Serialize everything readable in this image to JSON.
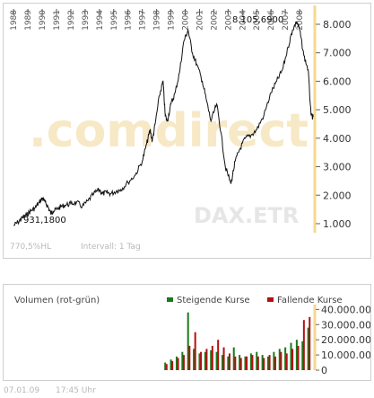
{
  "chart_data": [
    {
      "type": "line",
      "ylim": [
        -0.2,
        8.6
      ],
      "yticks": [
        1.0,
        2.0,
        3.0,
        4.0,
        5.0,
        6.0,
        7.0,
        8.0
      ],
      "ytick_labels": [
        "1.000",
        "2.000",
        "3.000",
        "4.000",
        "5.000",
        "6.000",
        "7.000",
        "8.000"
      ],
      "xlim": [
        1987.8,
        2009.0
      ],
      "xticks": [
        1988,
        1989,
        1990,
        1991,
        1992,
        1993,
        1994,
        1995,
        1996,
        1997,
        1998,
        1999,
        2000,
        2001,
        2002,
        2003,
        2004,
        2005,
        2006,
        2007,
        2008
      ],
      "xtick_labels": [
        "1988",
        "1989",
        "1990",
        "1991",
        "1992",
        "1993",
        "1994",
        "1995",
        "1996",
        "1997",
        "1998",
        "1999",
        "2000",
        "2001",
        "2002",
        "2003",
        "2004",
        "2005",
        "2006",
        "2007",
        "2008"
      ],
      "annotations": {
        "low": "931,1800",
        "high": "8.105,6900"
      },
      "watermark_brand": ".comdirect",
      "watermark_index": "DAX.ETR",
      "series": [
        {
          "x": [
            1988.0,
            1988.3,
            1988.6,
            1988.9,
            1989.2,
            1989.5,
            1989.8,
            1990.0,
            1990.2,
            1990.4,
            1990.6,
            1990.75,
            1991.0,
            1991.3,
            1991.6,
            1992.0,
            1992.4,
            1992.8,
            1993.2,
            1993.6,
            1994.0,
            1994.2,
            1994.5,
            1994.8,
            1995.2,
            1995.5,
            1996.0,
            1996.5,
            1997.0,
            1997.3,
            1997.55,
            1997.7,
            1997.9,
            1998.2,
            1998.45,
            1998.6,
            1998.75,
            1999.0,
            1999.3,
            1999.6,
            1999.9,
            2000.2,
            2000.5,
            2000.8,
            2001.2,
            2001.5,
            2001.8,
            2002.2,
            2002.5,
            2002.8,
            2003.2,
            2003.5,
            2003.8,
            2004.2,
            2004.6,
            2005.0,
            2005.5,
            2006.0,
            2006.4,
            2006.8,
            2007.2,
            2007.5,
            2007.8,
            2008.0,
            2008.3,
            2008.6,
            2008.8,
            2009.0
          ],
          "values": [
            0.93,
            1.05,
            1.2,
            1.3,
            1.45,
            1.55,
            1.75,
            1.9,
            1.75,
            1.6,
            1.35,
            1.45,
            1.5,
            1.6,
            1.65,
            1.7,
            1.75,
            1.6,
            1.8,
            2.05,
            2.2,
            2.05,
            2.1,
            2.05,
            2.15,
            2.2,
            2.45,
            2.7,
            3.2,
            3.8,
            4.3,
            3.9,
            4.5,
            5.5,
            6.0,
            4.8,
            4.6,
            5.2,
            5.6,
            6.3,
            7.4,
            7.8,
            7.0,
            6.6,
            6.0,
            5.3,
            4.6,
            5.2,
            4.2,
            3.0,
            2.4,
            3.2,
            3.6,
            4.0,
            4.1,
            4.3,
            4.8,
            5.6,
            6.0,
            6.4,
            7.2,
            7.8,
            8.1,
            7.8,
            6.9,
            6.4,
            4.8,
            4.7
          ]
        }
      ],
      "xlabel": "",
      "ylabel": ""
    },
    {
      "type": "bar",
      "ylim": [
        0,
        42000000
      ],
      "yticks": [
        0,
        10000000,
        20000000,
        30000000,
        40000000
      ],
      "ytick_labels": [
        "0",
        "10.000.000",
        "20.000.000",
        "30.000.000",
        "40.000.000"
      ],
      "xlim": [
        1987.8,
        2009.0
      ],
      "series": [
        {
          "name": "Steigende Kurse",
          "color": "#1a7a1a",
          "x": [
            1998.6,
            1999.0,
            1999.4,
            1999.8,
            2000.2,
            2000.6,
            2001.0,
            2001.4,
            2001.8,
            2002.2,
            2002.6,
            2003.0,
            2003.4,
            2003.8,
            2004.2,
            2004.6,
            2005.0,
            2005.4,
            2005.8,
            2006.2,
            2006.6,
            2007.0,
            2007.4,
            2007.8,
            2008.2,
            2008.6
          ],
          "values": [
            5000000,
            7000000,
            9000000,
            12000000,
            38000000,
            14000000,
            11000000,
            12000000,
            13000000,
            12000000,
            10000000,
            9000000,
            15000000,
            10000000,
            9000000,
            11000000,
            12000000,
            10000000,
            9000000,
            12000000,
            14000000,
            15000000,
            18000000,
            20000000,
            19000000,
            28000000
          ]
        },
        {
          "name": "Fallende Kurse",
          "color": "#b31010",
          "x": [
            1998.7,
            1999.1,
            1999.5,
            1999.9,
            2000.3,
            2000.7,
            2001.1,
            2001.5,
            2001.9,
            2002.3,
            2002.7,
            2003.1,
            2003.5,
            2003.9,
            2004.3,
            2004.7,
            2005.1,
            2005.5,
            2005.9,
            2006.3,
            2006.7,
            2007.1,
            2007.5,
            2007.9,
            2008.3,
            2008.7
          ],
          "values": [
            4000000,
            6000000,
            8000000,
            10000000,
            16000000,
            25000000,
            12000000,
            14000000,
            16000000,
            20000000,
            15000000,
            11000000,
            9000000,
            8000000,
            9000000,
            10000000,
            9000000,
            8000000,
            10000000,
            9000000,
            12000000,
            11000000,
            14000000,
            16000000,
            33000000,
            35000000
          ]
        }
      ],
      "title": "Volumen (rot-grün)",
      "legend": "top-right"
    }
  ],
  "footer": {
    "performance": "770,5%HL",
    "interval": "Intervall: 1 Tag",
    "date": "07.01.09",
    "time": "17:45 Uhr"
  }
}
